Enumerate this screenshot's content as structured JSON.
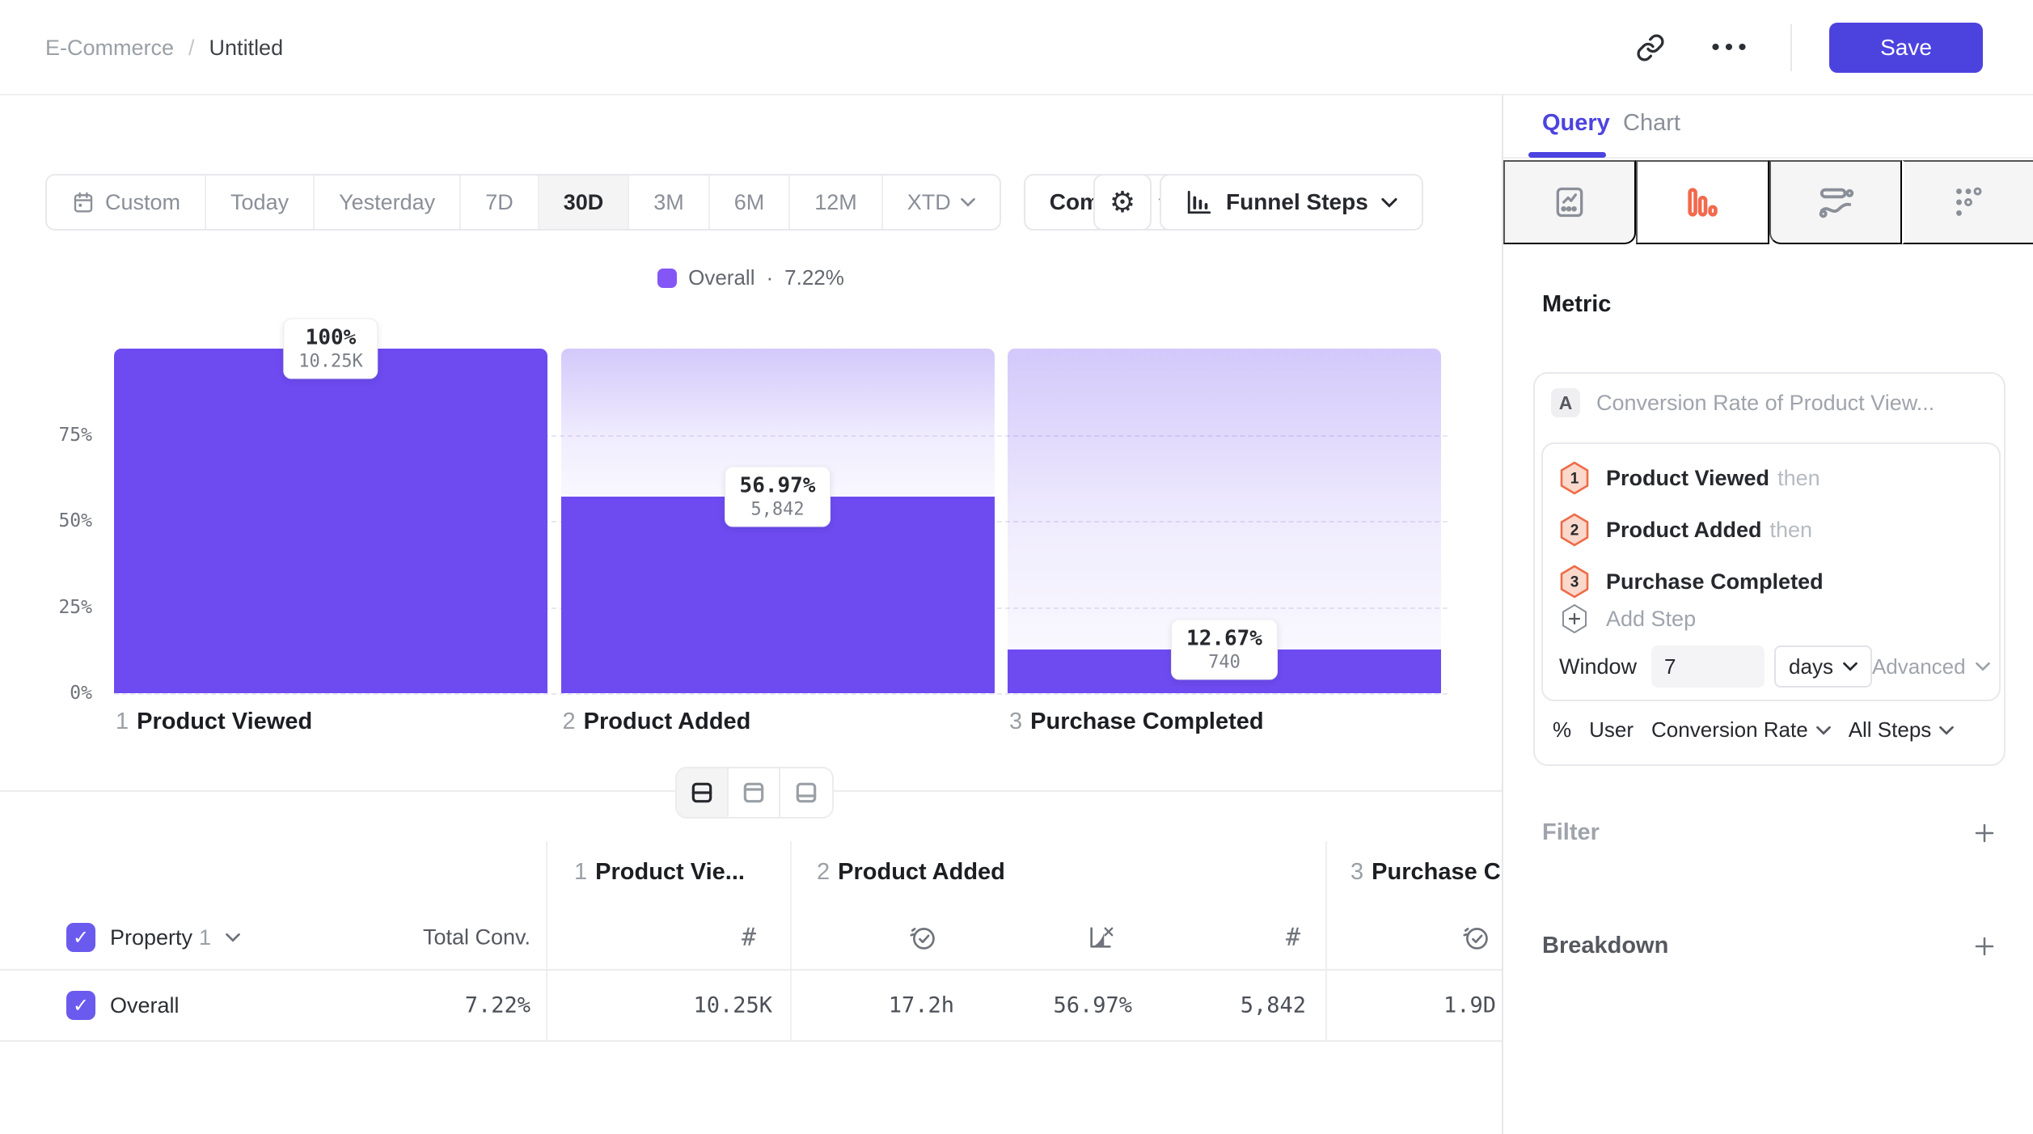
{
  "header": {
    "breadcrumb": {
      "root": "E-Commerce",
      "separator": "/",
      "current": "Untitled"
    },
    "save_label": "Save"
  },
  "icons": {
    "gear": "⚙",
    "more": "•••",
    "check": "✓",
    "hash": "#",
    "dot": "·"
  },
  "toolbar": {
    "date_ranges": [
      "Custom",
      "Today",
      "Yesterday",
      "7D",
      "30D",
      "3M",
      "6M",
      "12M",
      "XTD"
    ],
    "active_range": "30D",
    "compare_label": "Compare",
    "chart_type_label": "Funnel Steps"
  },
  "chart_data": {
    "type": "bar",
    "title": "Funnel Steps",
    "categories": [
      "Product Viewed",
      "Product Added",
      "Purchase Completed"
    ],
    "series": [
      {
        "name": "Overall",
        "values": [
          100,
          56.97,
          12.67
        ],
        "value_labels": [
          "100%",
          "56.97%",
          "12.67%"
        ],
        "count_labels": [
          "10.25K",
          "5,842",
          "740"
        ]
      }
    ],
    "ylim": [
      0,
      100
    ],
    "yticks": [
      {
        "label": "75%",
        "value": 75
      },
      {
        "label": "50%",
        "value": 50
      },
      {
        "label": "25%",
        "value": 25
      },
      {
        "label": "0%",
        "value": 0
      }
    ],
    "grid": "dashed-horizontal",
    "legend": {
      "position": "top-center",
      "label": "Overall",
      "separator": "·",
      "value": "7.22%"
    }
  },
  "table": {
    "columns": [
      {
        "num": "1",
        "name": "Product Vie..."
      },
      {
        "num": "2",
        "name": "Product Added"
      },
      {
        "num": "3",
        "name": "Purchase C"
      }
    ],
    "property_label": "Property",
    "property_num": "1",
    "total_conv_label": "Total Conv.",
    "row": {
      "name": "Overall",
      "total_conv": "7.22%",
      "values": [
        "10.25K",
        "17.2h",
        "56.97%",
        "5,842",
        "1.9D"
      ]
    }
  },
  "panel": {
    "tabs": {
      "query": "Query",
      "chart": "Chart"
    },
    "metric_heading": "Metric",
    "metric_card": {
      "badge": "A",
      "title": "Conversion Rate of Product View..."
    },
    "steps": [
      {
        "num": "1",
        "name": "Product Viewed",
        "suffix": "then"
      },
      {
        "num": "2",
        "name": "Product Added",
        "suffix": "then"
      },
      {
        "num": "3",
        "name": "Purchase Completed",
        "suffix": ""
      }
    ],
    "add_step_label": "Add Step",
    "window": {
      "label": "Window",
      "value": "7",
      "unit": "days",
      "advanced_label": "Advanced"
    },
    "measure": {
      "pct": "%",
      "user": "User",
      "metric": "Conversion Rate",
      "steps": "All Steps"
    },
    "filter_label": "Filter",
    "breakdown_label": "Breakdown"
  },
  "colors": {
    "accent_indigo": "#4c43e0",
    "bar_purple": "#6d4bf0",
    "legend_purple": "#8456f6",
    "checkbox_purple": "#6b5aee",
    "funnel_icon_orange": "#f2694c",
    "step_hex_fill": "#fad8cb",
    "step_hex_stroke": "#ed6c47"
  }
}
